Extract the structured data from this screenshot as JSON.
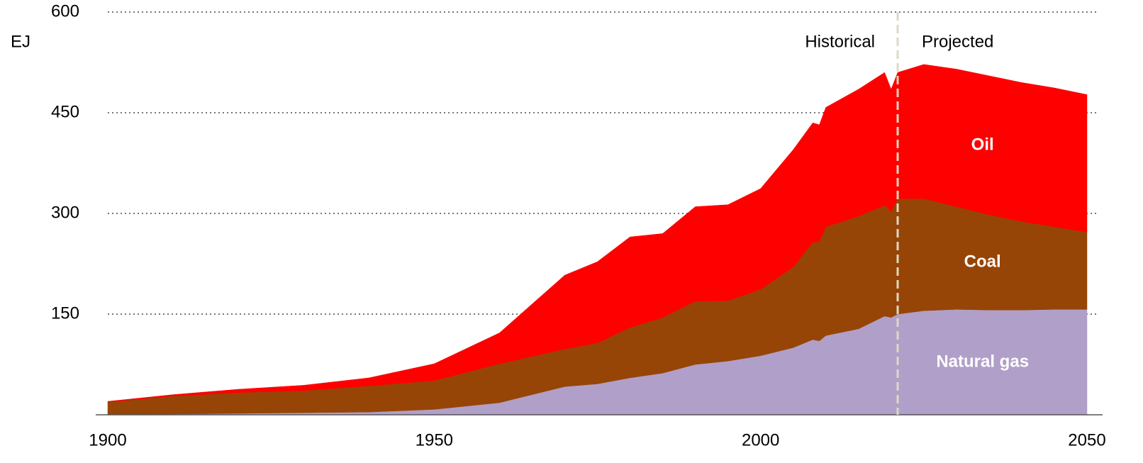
{
  "chart_data": {
    "type": "stacked_area",
    "y_unit": "EJ",
    "annotations": {
      "historical": "Historical",
      "projected": "Projected"
    },
    "divider": 2021,
    "x": [
      1900,
      1910,
      1920,
      1930,
      1940,
      1950,
      1960,
      1965,
      1970,
      1975,
      1980,
      1985,
      1990,
      1995,
      2000,
      2005,
      2008,
      2009,
      2010,
      2015,
      2019,
      2020,
      2021,
      2025,
      2030,
      2035,
      2040,
      2045,
      2050
    ],
    "series": [
      {
        "name": "Natural gas",
        "color": "#b09fc8",
        "values": [
          0.5,
          1,
          2,
          3,
          4,
          8,
          18,
          30,
          42,
          46,
          55,
          62,
          75,
          80,
          88,
          100,
          112,
          110,
          118,
          128,
          147,
          145,
          150,
          155,
          157,
          156,
          156,
          157,
          157
        ]
      },
      {
        "name": "Coal",
        "color": "#964506",
        "values": [
          18.5,
          27,
          31,
          33,
          39,
          43,
          58,
          57,
          56,
          61,
          75,
          83,
          94,
          90,
          99,
          120,
          145,
          148,
          162,
          168,
          165,
          158,
          172,
          167,
          153,
          142,
          132,
          123,
          115
        ]
      },
      {
        "name": "Oil",
        "color": "#fe0000",
        "values": [
          1,
          2,
          5,
          8,
          12,
          25,
          46,
          78,
          110,
          121,
          135,
          125,
          141,
          143,
          150,
          175,
          178,
          174,
          178,
          189,
          198,
          182,
          188,
          200,
          205,
          207,
          207,
          207,
          205
        ]
      }
    ],
    "xlim": [
      1900,
      2050
    ],
    "xticks": [
      1900,
      1950,
      2000,
      2050
    ],
    "ylim": [
      0,
      600
    ],
    "yticks": [
      150,
      300,
      450,
      600
    ],
    "grid": true
  }
}
